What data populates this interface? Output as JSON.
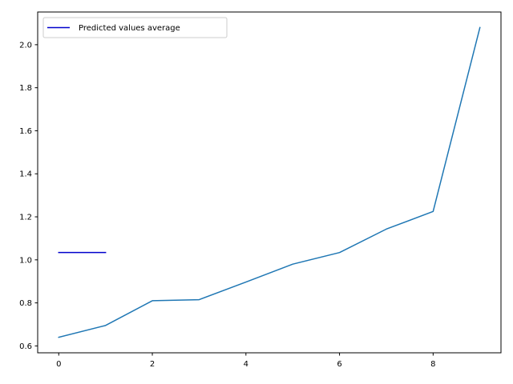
{
  "chart_data": {
    "type": "line",
    "title": "",
    "xlabel": "",
    "ylabel": "",
    "xlim": [
      -0.45,
      9.45
    ],
    "ylim": [
      0.568,
      2.152
    ],
    "x_ticks": [
      0,
      2,
      4,
      6,
      8
    ],
    "x_tick_labels": [
      "0",
      "2",
      "4",
      "6",
      "8"
    ],
    "y_ticks": [
      0.6,
      0.8,
      1.0,
      1.2,
      1.4,
      1.6,
      1.8,
      2.0
    ],
    "y_tick_labels": [
      "0.6",
      "0.8",
      "1.0",
      "1.2",
      "1.4",
      "1.6",
      "1.8",
      "2.0"
    ],
    "grid": false,
    "legend_position": "upper-left",
    "series": [
      {
        "color": "#1f77b4",
        "x": [
          0,
          1,
          2,
          3,
          4,
          5,
          6,
          7,
          8,
          9
        ],
        "values": [
          0.64,
          0.695,
          0.81,
          0.815,
          0.897,
          0.98,
          1.034,
          1.143,
          1.225,
          2.08
        ]
      },
      {
        "name": "Predicted values average",
        "color": "#0000cc",
        "x": [
          0,
          1
        ],
        "values": [
          1.034,
          1.034
        ]
      }
    ]
  }
}
